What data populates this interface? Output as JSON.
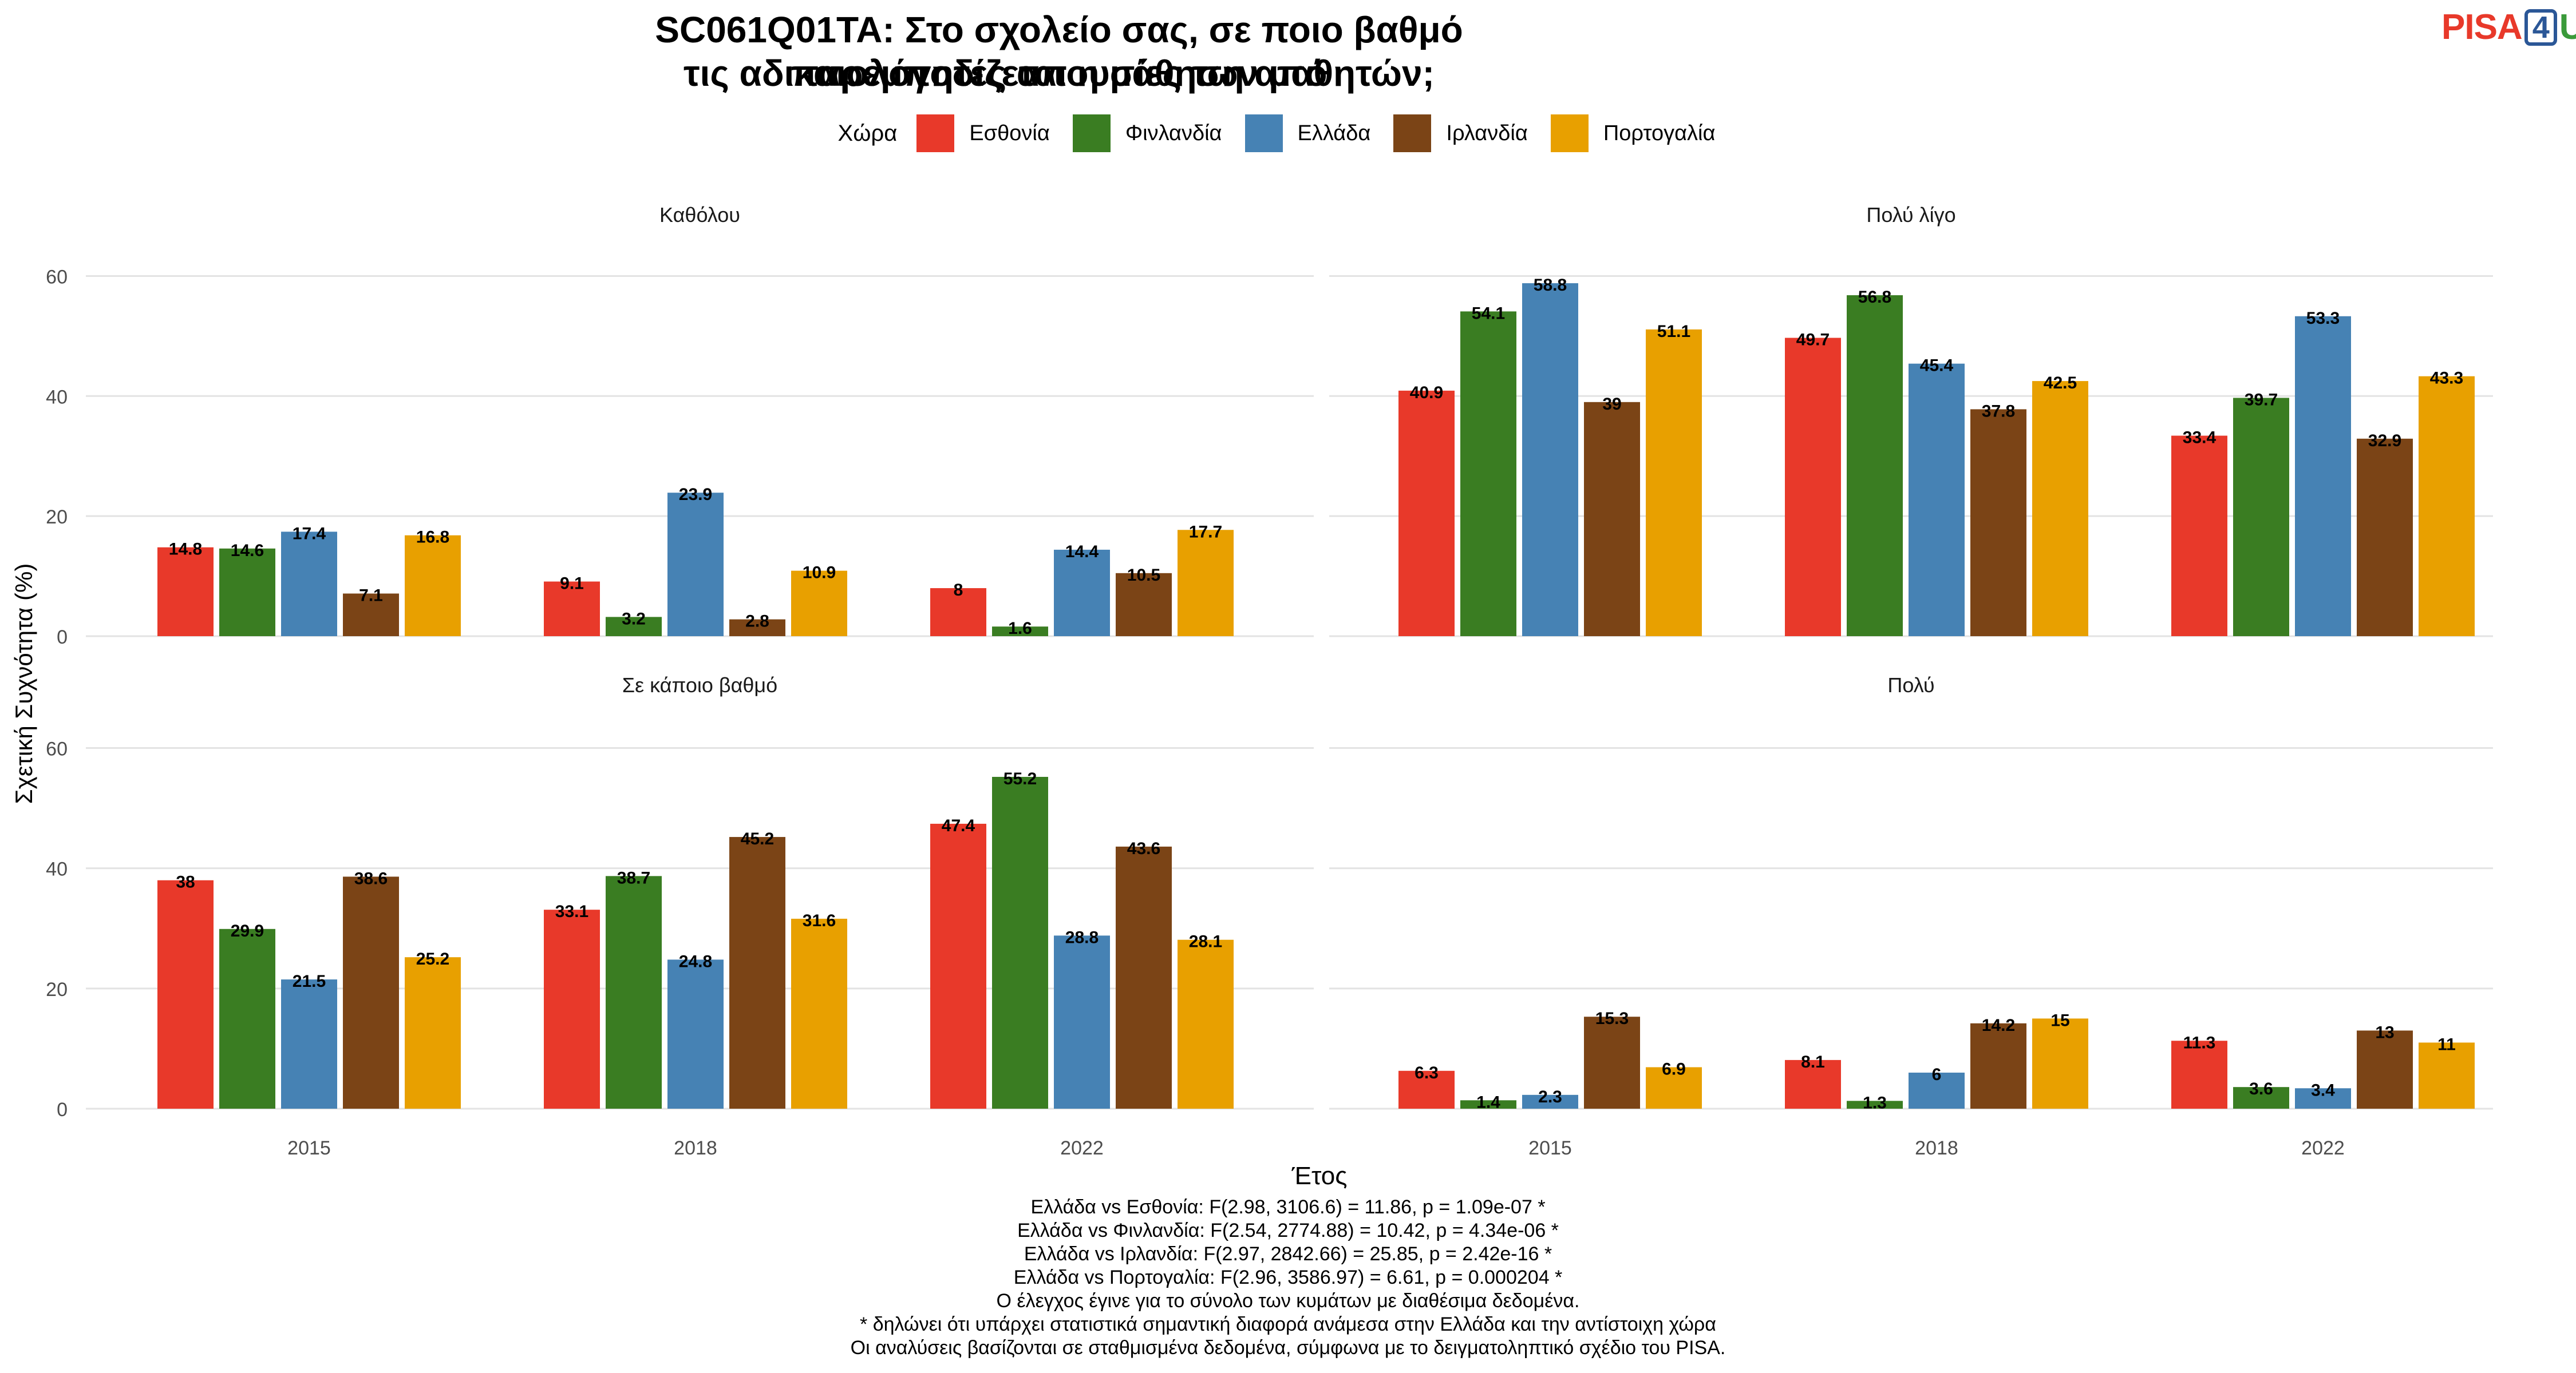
{
  "title_line1": "SC061Q01TA: Στο σχολείο σας, σε ποιο βαθμό παρεμποδίζεται η μάθηση από",
  "title_line2": "τις αδικαιολόγητες απουσίες των μαθητών;",
  "logo": {
    "pisa": "PISA",
    "four": "4",
    "u": "U"
  },
  "legend": {
    "title": "Χώρα",
    "items": [
      {
        "label": "Εσθονία",
        "color": "#e8392a"
      },
      {
        "label": "Φινλανδία",
        "color": "#3a7d22"
      },
      {
        "label": "Ελλάδα",
        "color": "#4682b4"
      },
      {
        "label": "Ιρλανδία",
        "color": "#7b4416"
      },
      {
        "label": "Πορτογαλία",
        "color": "#e8a000"
      }
    ]
  },
  "chart_data": {
    "type": "bar",
    "xlabel": "Έτος",
    "ylabel": "Σχετική Συχνότητα (%)",
    "ylim": [
      0,
      65
    ],
    "yticks": [
      0,
      20,
      40,
      60
    ],
    "categories": [
      "2015",
      "2018",
      "2022"
    ],
    "series_names": [
      "Εσθονία",
      "Φινλανδία",
      "Ελλάδα",
      "Ιρλανδία",
      "Πορτογαλία"
    ],
    "colors": [
      "#e8392a",
      "#3a7d22",
      "#4682b4",
      "#7b4416",
      "#e8a000"
    ],
    "grid": true,
    "facets": [
      {
        "title": "Καθόλου",
        "values": [
          [
            14.8,
            14.6,
            17.4,
            7.1,
            16.8
          ],
          [
            9.1,
            3.2,
            23.9,
            2.8,
            10.9
          ],
          [
            8,
            1.6,
            14.4,
            10.5,
            17.7
          ]
        ]
      },
      {
        "title": "Πολύ λίγο",
        "values": [
          [
            40.9,
            54.1,
            58.8,
            39,
            51.1
          ],
          [
            49.7,
            56.8,
            45.4,
            37.8,
            42.5
          ],
          [
            33.4,
            39.7,
            53.3,
            32.9,
            43.3
          ]
        ]
      },
      {
        "title": "Σε κάποιο βαθμό",
        "values": [
          [
            38,
            29.9,
            21.5,
            38.6,
            25.2
          ],
          [
            33.1,
            38.7,
            24.8,
            45.2,
            31.6
          ],
          [
            47.4,
            55.2,
            28.8,
            43.6,
            28.1
          ]
        ]
      },
      {
        "title": "Πολύ",
        "values": [
          [
            6.3,
            1.4,
            2.3,
            15.3,
            6.9
          ],
          [
            8.1,
            1.3,
            6,
            14.2,
            15
          ],
          [
            11.3,
            3.6,
            3.4,
            13,
            11
          ]
        ]
      }
    ]
  },
  "notes": [
    "Ελλάδα vs Εσθονία: F(2.98, 3106.6) = 11.86, p = 1.09e-07 *",
    "Ελλάδα vs Φινλανδία: F(2.54, 2774.88) = 10.42, p = 4.34e-06 *",
    "Ελλάδα vs Ιρλανδία: F(2.97, 2842.66) = 25.85, p = 2.42e-16 *",
    "Ελλάδα vs Πορτογαλία: F(2.96, 3586.97) = 6.61, p = 0.000204 *",
    "Ο έλεγχος έγινε για το σύνολο των κυμάτων με διαθέσιμα δεδομένα.",
    "* δηλώνει ότι υπάρχει στατιστικά σημαντική διαφορά ανάμεσα στην Ελλάδα και την αντίστοιχη χώρα",
    "Οι αναλύσεις βασίζονται σε σταθμισμένα δεδομένα, σύμφωνα με το δειγματοληπτικό σχέδιο του PISA."
  ]
}
